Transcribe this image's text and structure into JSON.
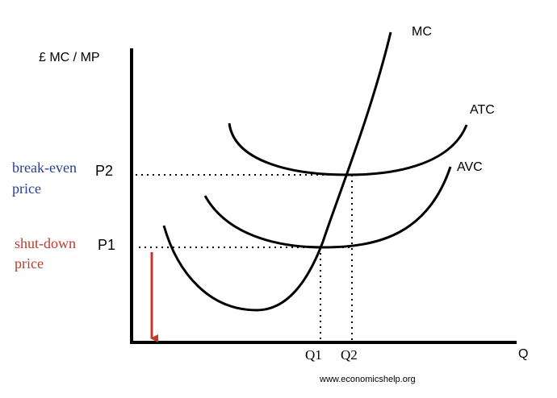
{
  "axes": {
    "y_label": "£ MC / MP",
    "x_label": "Q"
  },
  "curves": {
    "mc": "MC",
    "atc": "ATC",
    "avc": "AVC"
  },
  "prices": {
    "break_even": {
      "label": "P2",
      "note": [
        "break-even",
        "price"
      ]
    },
    "shut_down": {
      "label": "P1",
      "note": [
        "shut-down",
        "price"
      ]
    }
  },
  "quantities": [
    "Q1",
    "Q2"
  ],
  "footer": "www.economicshelp.org"
}
